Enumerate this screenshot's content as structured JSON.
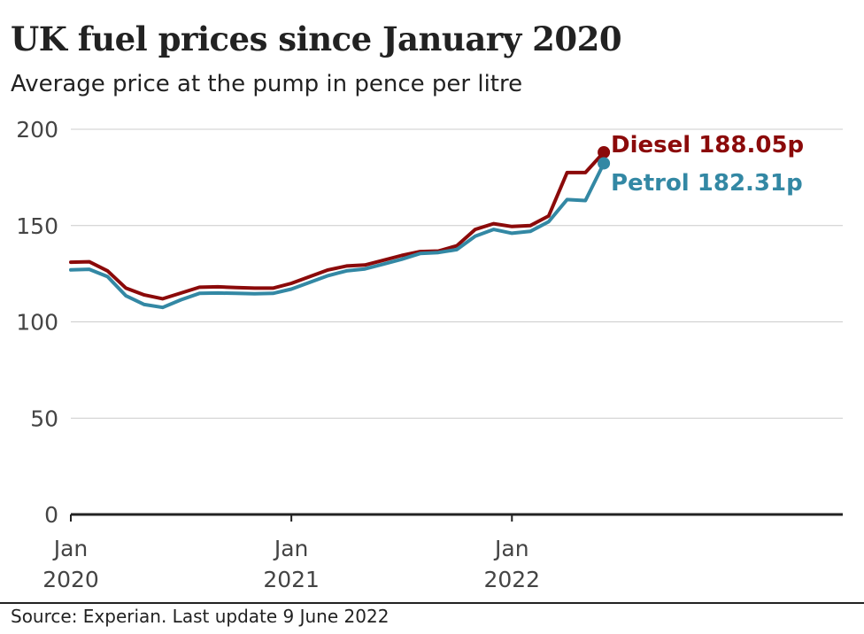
{
  "header": {
    "title": "UK fuel prices since January 2020",
    "subtitle": "Average price at the pump in pence per litre"
  },
  "footer": {
    "source": "Source: Experian. Last update 9 June 2022"
  },
  "chart_data": {
    "type": "line",
    "ylim": [
      0,
      200
    ],
    "yticks": [
      0,
      50,
      100,
      150,
      200
    ],
    "xlim": [
      "2020-01",
      "2023-07"
    ],
    "xticks": [
      {
        "date": "2020-01",
        "line1": "Jan",
        "line2": "2020"
      },
      {
        "date": "2021-01",
        "line1": "Jan",
        "line2": "2021"
      },
      {
        "date": "2022-01",
        "line1": "Jan",
        "line2": "2022"
      }
    ],
    "grid": true,
    "x": [
      "2020-01",
      "2020-02",
      "2020-03",
      "2020-04",
      "2020-05",
      "2020-06",
      "2020-07",
      "2020-08",
      "2020-09",
      "2020-10",
      "2020-11",
      "2020-12",
      "2021-01",
      "2021-02",
      "2021-03",
      "2021-04",
      "2021-05",
      "2021-06",
      "2021-07",
      "2021-08",
      "2021-09",
      "2021-10",
      "2021-11",
      "2021-12",
      "2022-01",
      "2022-02",
      "2022-03",
      "2022-04",
      "2022-05",
      "2022-06"
    ],
    "series": [
      {
        "name": "Diesel",
        "label": "Diesel 188.05p",
        "color": "#8b0a0a",
        "values": [
          131.0,
          131.2,
          126.5,
          117.5,
          114.0,
          112.0,
          115.0,
          118.0,
          118.2,
          117.8,
          117.5,
          117.5,
          120.0,
          123.5,
          127.0,
          129.0,
          129.5,
          132.0,
          134.5,
          136.5,
          136.8,
          139.5,
          148.0,
          151.0,
          149.5,
          150.0,
          155.0,
          177.5,
          177.5,
          188.05
        ]
      },
      {
        "name": "Petrol",
        "label": "Petrol 182.31p",
        "color": "#3388a4",
        "values": [
          127.0,
          127.3,
          123.5,
          113.5,
          109.0,
          107.5,
          111.5,
          114.8,
          115.0,
          114.8,
          114.6,
          114.8,
          117.0,
          120.5,
          124.0,
          126.5,
          127.5,
          130.0,
          132.5,
          135.5,
          136.0,
          137.5,
          144.5,
          148.0,
          146.0,
          147.0,
          152.0,
          163.5,
          163.0,
          182.31
        ]
      }
    ]
  }
}
